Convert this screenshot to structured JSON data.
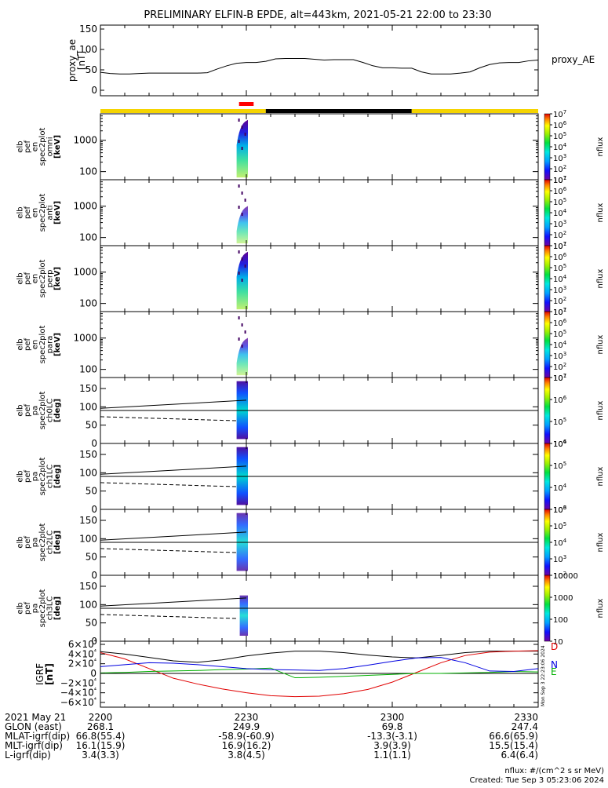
{
  "title": "PRELIMINARY ELFIN-B EPDE, alt=443km, 2021-05-21 22:00 to 23:30",
  "colors": {
    "sunlight": "#f5d400",
    "eclipse": "#000000",
    "science_zone": "#ff0000",
    "bx": "#e00000",
    "by": "#00b000",
    "bz": "#0000e0",
    "btot": "#000000"
  },
  "chart_data": [
    {
      "type": "line",
      "panel": "proxy_ae",
      "ylabel": [
        "proxy_ae",
        "[nT]"
      ],
      "legend": "proxy_AE",
      "ylim": [
        0,
        150
      ],
      "yticks": [
        "0",
        "50",
        "100",
        "150"
      ],
      "x_minutes": [
        0,
        2,
        4,
        6,
        8,
        10,
        12,
        14,
        16,
        18,
        20,
        22,
        24,
        26,
        28,
        30,
        32,
        34,
        36,
        38,
        40,
        42,
        44,
        46,
        48,
        50,
        52,
        54,
        56,
        58,
        60,
        62,
        64,
        66,
        68,
        70,
        72,
        74,
        76,
        78,
        80,
        82,
        84,
        86,
        88,
        90
      ],
      "values": [
        44,
        41,
        40,
        40,
        41,
        42,
        42,
        42,
        42,
        42,
        42,
        43,
        52,
        60,
        66,
        68,
        68,
        71,
        77,
        78,
        78,
        78,
        76,
        74,
        75,
        75,
        75,
        68,
        60,
        55,
        55,
        54,
        54,
        45,
        40,
        40,
        40,
        42,
        45,
        55,
        63,
        67,
        68,
        68,
        72,
        74
      ]
    },
    {
      "type": "heatmap",
      "panel": "omni",
      "ylabel": [
        "elb",
        "pef",
        "en",
        "spec2plot",
        "omni",
        "[keV]"
      ],
      "yscale": "log",
      "yticks": [
        "100",
        "1000"
      ],
      "colorbar": {
        "label": "nflux",
        "ticks": [
          "10^1",
          "10^2",
          "10^3",
          "10^4",
          "10^5",
          "10^6",
          "10^7"
        ],
        "range": [
          10,
          10000000
        ],
        "scale": "log"
      },
      "time_window_minutes": [
        28,
        30
      ]
    },
    {
      "type": "heatmap",
      "panel": "anti",
      "ylabel": [
        "elb",
        "pef",
        "en",
        "spec2plot",
        "anti",
        "[keV]"
      ],
      "yscale": "log",
      "yticks": [
        "100",
        "1000"
      ],
      "colorbar": {
        "label": "nflux",
        "ticks": [
          "10^1",
          "10^2",
          "10^3",
          "10^4",
          "10^5",
          "10^6",
          "10^7"
        ],
        "range": [
          10,
          10000000
        ],
        "scale": "log"
      },
      "time_window_minutes": [
        28,
        30
      ]
    },
    {
      "type": "heatmap",
      "panel": "perp",
      "ylabel": [
        "elb",
        "pef",
        "en",
        "spec2plot",
        "perp",
        "[keV]"
      ],
      "yscale": "log",
      "yticks": [
        "100",
        "1000"
      ],
      "colorbar": {
        "label": "nflux",
        "ticks": [
          "10^1",
          "10^2",
          "10^3",
          "10^4",
          "10^5",
          "10^6",
          "10^7"
        ],
        "range": [
          10,
          10000000
        ],
        "scale": "log"
      },
      "time_window_minutes": [
        28,
        30
      ]
    },
    {
      "type": "heatmap",
      "panel": "para",
      "ylabel": [
        "elb",
        "pef",
        "en",
        "spec2plot",
        "para",
        "[keV]"
      ],
      "yscale": "log",
      "yticks": [
        "100",
        "1000"
      ],
      "colorbar": {
        "label": "nflux",
        "ticks": [
          "10^1",
          "10^2",
          "10^3",
          "10^4",
          "10^5",
          "10^6",
          "10^7"
        ],
        "range": [
          10,
          10000000
        ],
        "scale": "log"
      },
      "time_window_minutes": [
        28,
        30
      ]
    },
    {
      "type": "heatmap",
      "panel": "ch0LC",
      "ylabel": [
        "elb",
        "pef",
        "pa",
        "spec2plot",
        "ch0LC",
        "[deg]"
      ],
      "ylim": [
        0,
        180
      ],
      "yticks": [
        "0",
        "50",
        "100",
        "150"
      ],
      "horizontal_line": 90,
      "loss_cone_start": [
        96,
        118
      ],
      "anti_loss_cone_start": [
        73,
        62
      ],
      "colorbar": {
        "label": "nflux",
        "ticks": [
          "10^4",
          "10^5",
          "10^6",
          "10^7"
        ],
        "range": [
          10000,
          10000000
        ],
        "scale": "log"
      },
      "time_window_minutes": [
        28,
        30
      ]
    },
    {
      "type": "heatmap",
      "panel": "ch1LC",
      "ylabel": [
        "elb",
        "pef",
        "pa",
        "spec2plot",
        "ch1LC",
        "[deg]"
      ],
      "ylim": [
        0,
        180
      ],
      "yticks": [
        "0",
        "50",
        "100",
        "150"
      ],
      "horizontal_line": 90,
      "loss_cone_start": [
        96,
        118
      ],
      "anti_loss_cone_start": [
        73,
        62
      ],
      "colorbar": {
        "label": "nflux",
        "ticks": [
          "10^3",
          "10^4",
          "10^5",
          "10^6"
        ],
        "range": [
          1000,
          1000000
        ],
        "scale": "log"
      },
      "time_window_minutes": [
        28,
        30
      ]
    },
    {
      "type": "heatmap",
      "panel": "ch2LC",
      "ylabel": [
        "elb",
        "pef",
        "pa",
        "spec2plot",
        "ch2LC",
        "[deg]"
      ],
      "ylim": [
        0,
        180
      ],
      "yticks": [
        "0",
        "50",
        "100",
        "150"
      ],
      "horizontal_line": 90,
      "loss_cone_start": [
        96,
        118
      ],
      "anti_loss_cone_start": [
        73,
        62
      ],
      "colorbar": {
        "label": "nflux",
        "ticks": [
          "10^2",
          "10^3",
          "10^4",
          "10^5",
          "10^6"
        ],
        "range": [
          100,
          1000000
        ],
        "scale": "log"
      },
      "time_window_minutes": [
        28,
        30
      ]
    },
    {
      "type": "heatmap",
      "panel": "ch3LC",
      "ylabel": [
        "elb",
        "pef",
        "pa",
        "spec2plot",
        "ch3LC",
        "[deg]"
      ],
      "ylim": [
        0,
        180
      ],
      "yticks": [
        "0",
        "50",
        "100",
        "150"
      ],
      "horizontal_line": 90,
      "loss_cone_start": [
        96,
        118
      ],
      "anti_loss_cone_start": [
        73,
        62
      ],
      "colorbar": {
        "label": "nflux",
        "ticks": [
          "10",
          "100",
          "1000",
          "10000"
        ],
        "range": [
          10,
          10000
        ],
        "scale": "log"
      },
      "time_window_minutes": [
        28,
        30
      ]
    },
    {
      "type": "line",
      "panel": "igrf",
      "ylabel": [
        "IGRF",
        "[nT]"
      ],
      "ylim": [
        -60000,
        60000
      ],
      "yticks": [
        "6×10⁴",
        "4×10⁴",
        "2×10⁴",
        "0",
        "−2×10⁴",
        "−4×10⁴",
        "−6×10⁴"
      ],
      "legend": [
        "D",
        "N",
        "E"
      ],
      "horizontal_line": 0,
      "x_minutes": [
        0,
        5,
        10,
        15,
        20,
        25,
        30,
        35,
        40,
        45,
        50,
        55,
        60,
        65,
        70,
        75,
        80,
        85,
        90
      ],
      "series": [
        {
          "values": [
            45000,
            40000,
            33000,
            26000,
            23000,
            28000,
            36000,
            42000,
            46000,
            46000,
            43000,
            38000,
            34000,
            32000,
            37000,
            43000,
            46000,
            46000,
            46000
          ]
        },
        {
          "values": [
            43000,
            30000,
            10000,
            -10000,
            -22000,
            -32000,
            -40000,
            -46000,
            -48000,
            -47000,
            -42000,
            -33000,
            -18000,
            2000,
            22000,
            37000,
            44000,
            46000,
            47000
          ]
        },
        {
          "values": [
            1000,
            2000,
            4000,
            5000,
            6000,
            8000,
            9000,
            11000,
            -9000,
            -8000,
            -6000,
            -4000,
            -2000,
            0,
            0,
            1000,
            2000,
            4000,
            3000
          ]
        },
        {
          "values": [
            14000,
            18000,
            22000,
            21000,
            18000,
            14000,
            10000,
            8000,
            7000,
            6000,
            10000,
            17000,
            25000,
            32000,
            33000,
            22000,
            5000,
            4000,
            10000
          ]
        }
      ]
    }
  ],
  "panel_labels": {
    "omni": [
      "elb",
      "pef",
      "en",
      "spec2plot",
      "omni",
      "[keV]"
    ],
    "anti": [
      "elb",
      "pef",
      "en",
      "spec2plot",
      "anti",
      "[keV]"
    ],
    "perp": [
      "elb",
      "pef",
      "en",
      "spec2plot",
      "perp",
      "[keV]"
    ],
    "para": [
      "elb",
      "pef",
      "en",
      "spec2plot",
      "para",
      "[keV]"
    ],
    "ch0": [
      "elb",
      "pef",
      "pa",
      "spec2plot",
      "ch0LC",
      "[deg]"
    ],
    "ch1": [
      "elb",
      "pef",
      "pa",
      "spec2plot",
      "ch1LC",
      "[deg]"
    ],
    "ch2": [
      "elb",
      "pef",
      "pa",
      "spec2plot",
      "ch2LC",
      "[deg]"
    ],
    "ch3": [
      "elb",
      "pef",
      "pa",
      "spec2plot",
      "ch3LC",
      "[deg]"
    ]
  },
  "xaxis": {
    "rows": [
      {
        "label": "2021 May 21",
        "values": [
          "2200",
          "2230",
          "2300",
          "2330"
        ]
      },
      {
        "label": "GLON (east)",
        "values": [
          "268.1",
          "249.9",
          "69.8",
          "247.4"
        ]
      },
      {
        "label": "MLAT-igrf(dip)",
        "values": [
          "66.8(55.4)",
          "-58.9(-60.9)",
          "-13.3(-3.1)",
          "66.6(65.9)"
        ]
      },
      {
        "label": "MLT-igrf(dip)",
        "values": [
          "16.1(15.9)",
          "16.9(16.2)",
          "3.9(3.9)",
          "15.5(15.4)"
        ]
      },
      {
        "label": "L-igrf(dip)",
        "values": [
          "3.4(3.3)",
          "3.8(4.5)",
          "1.1(1.1)",
          "6.4(6.4)"
        ]
      }
    ]
  },
  "footer": {
    "units": "nflux: #/(cm^2 s sr MeV)",
    "created": "Created: Tue Sep  3 05:23:06 2024",
    "stamp": "Mon Sep  3 22:23:06 2024"
  }
}
